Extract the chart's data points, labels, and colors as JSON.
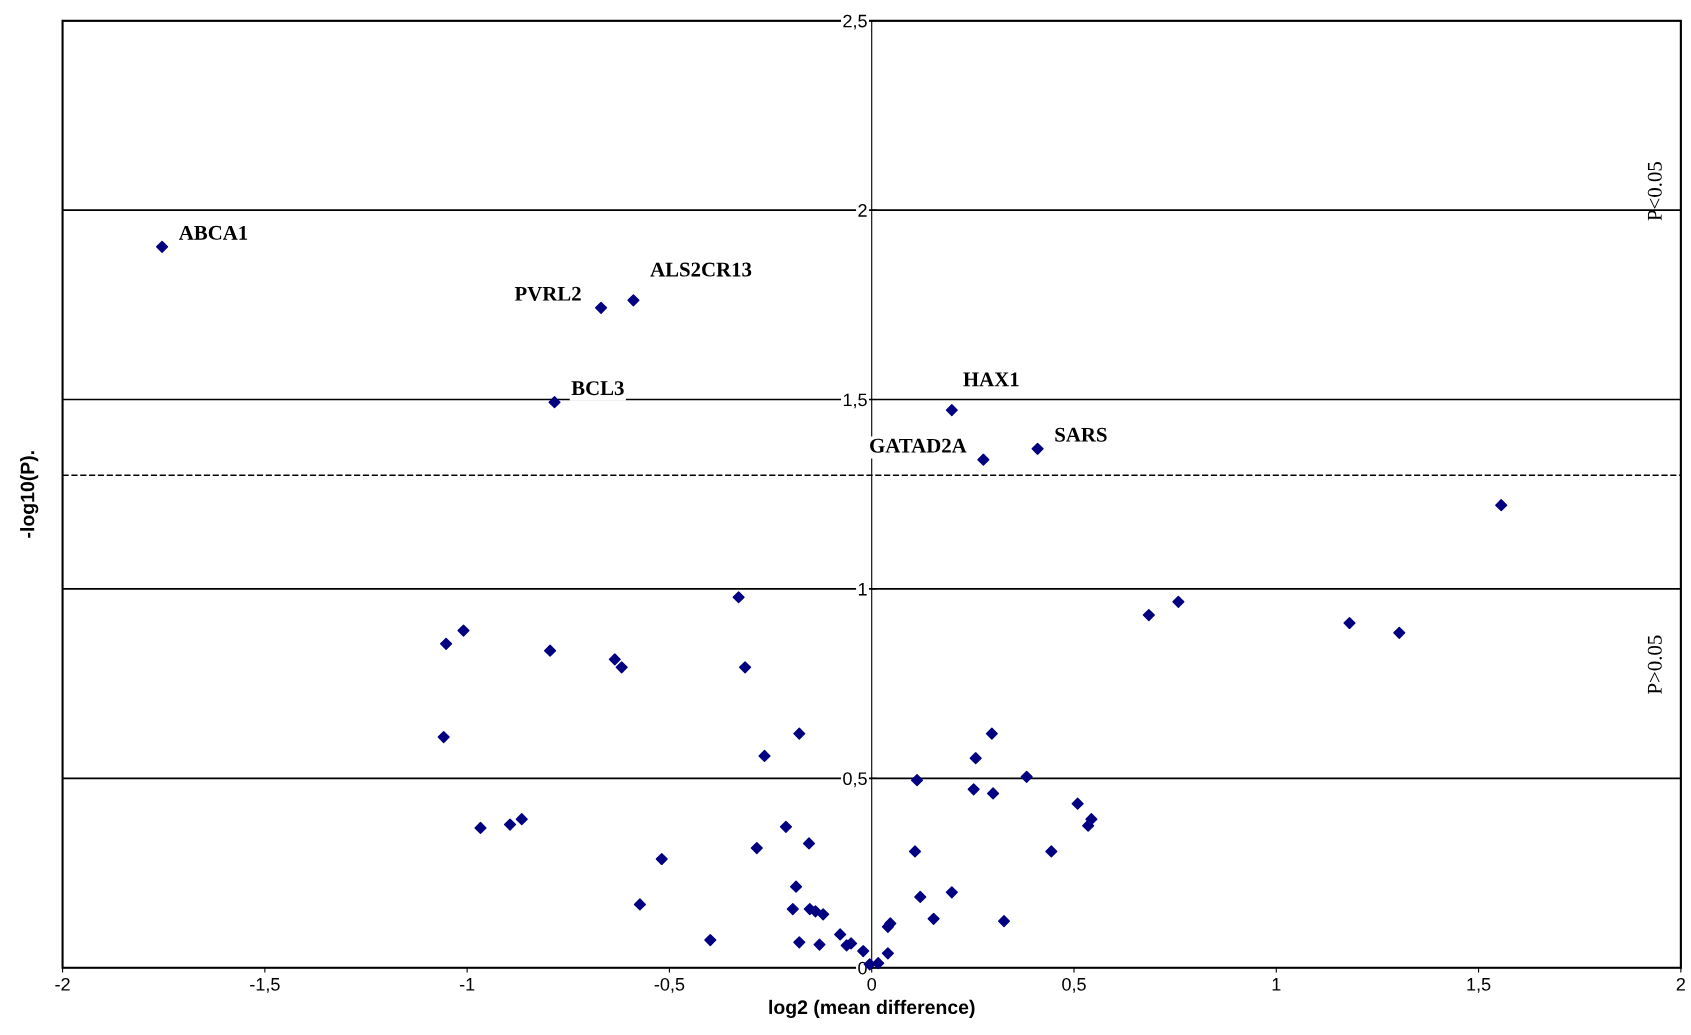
{
  "chart_data": {
    "type": "scatter",
    "xlabel": "log2 (mean difference)",
    "ylabel": "-log10(P).",
    "x": [
      -1.754,
      -0.669,
      -0.589,
      -0.784,
      0.198,
      0.276,
      0.41,
      1.556,
      -0.329,
      0.758,
      0.685,
      1.181,
      1.304,
      -1.009,
      -1.052,
      -0.795,
      -0.635,
      -0.618,
      -0.313,
      -1.058,
      -0.179,
      0.297,
      -0.265,
      0.257,
      0.383,
      0.112,
      0.252,
      0.3,
      0.509,
      0.543,
      0.535,
      -0.865,
      -0.894,
      -0.967,
      -0.212,
      -0.155,
      -0.284,
      0.107,
      0.444,
      -0.519,
      -0.187,
      0.198,
      0.12,
      -0.573,
      -0.195,
      -0.153,
      -0.139,
      -0.12,
      0.153,
      0.327,
      0.046,
      0.04,
      -0.078,
      -0.399,
      -0.179,
      -0.129,
      -0.062,
      -0.051,
      -0.021,
      0.04,
      -0.005,
      0.016
    ],
    "series": [
      {
        "color": "#000080",
        "values": [
          1.903,
          1.742,
          1.762,
          1.493,
          1.472,
          1.341,
          1.37,
          1.221,
          0.978,
          0.966,
          0.931,
          0.91,
          0.884,
          0.89,
          0.855,
          0.837,
          0.814,
          0.793,
          0.793,
          0.609,
          0.618,
          0.618,
          0.559,
          0.553,
          0.504,
          0.495,
          0.471,
          0.46,
          0.433,
          0.392,
          0.375,
          0.392,
          0.378,
          0.369,
          0.372,
          0.328,
          0.316,
          0.307,
          0.307,
          0.287,
          0.214,
          0.199,
          0.187,
          0.167,
          0.155,
          0.155,
          0.149,
          0.141,
          0.129,
          0.123,
          0.117,
          0.108,
          0.088,
          0.073,
          0.067,
          0.061,
          0.059,
          0.064,
          0.044,
          0.038,
          0.009,
          0.012
        ]
      }
    ],
    "marker": "diamond",
    "grid": "y",
    "legend": false,
    "xlim": [
      -2,
      2
    ],
    "xticks": [
      -2,
      {
        "value": -1.5,
        "label": "-1,5"
      },
      -1,
      {
        "value": -0.5,
        "label": "-0,5"
      },
      0,
      {
        "value": 0.5,
        "label": "0,5"
      },
      1,
      {
        "value": 1.5,
        "label": "1,5"
      },
      2
    ],
    "ylim": [
      0,
      2.5
    ],
    "yticks": [
      0,
      {
        "value": 0.5,
        "label": "0,5"
      },
      1,
      {
        "value": 1.5,
        "label": "1,5"
      },
      2,
      {
        "value": 2.5,
        "label": "2,5"
      }
    ],
    "ref_lines": [
      {
        "axis": "y",
        "value": 1.3,
        "line_style": "dashed",
        "color": "#000000"
      }
    ],
    "annotations": [
      {
        "text": "ABCA1",
        "x": -1.754,
        "y": 1.903
      },
      {
        "text": "PVRL2",
        "x": -0.669,
        "y": 1.742
      },
      {
        "text": "ALS2CR13",
        "x": -0.589,
        "y": 1.762
      },
      {
        "text": "BCL3",
        "x": -0.784,
        "y": 1.493
      },
      {
        "text": "HAX1",
        "x": 0.198,
        "y": 1.472
      },
      {
        "text": "GATAD2A",
        "x": 0.276,
        "y": 1.341
      },
      {
        "text": "SARS",
        "x": 0.41,
        "y": 1.37
      },
      "P<0.05",
      "P>0.05"
    ]
  }
}
